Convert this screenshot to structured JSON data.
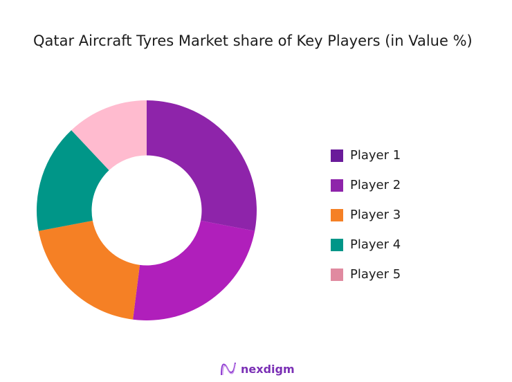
{
  "chart_data": {
    "type": "pie",
    "subtype": "donut",
    "title": "Qatar Aircraft Tyres Market share of Key Players (in Value %)",
    "categories": [
      "Player 1",
      "Player 2",
      "Player 3",
      "Player 4",
      "Player 5"
    ],
    "values": [
      28,
      24,
      20,
      16,
      12
    ],
    "colors": [
      "#8e24aa",
      "#b01fbb",
      "#f58025",
      "#009688",
      "#ffbbcf"
    ],
    "legend_colors": [
      "#6a1b9a",
      "#8e24aa",
      "#f58025",
      "#009688",
      "#e08aa0"
    ],
    "legend_position": "right",
    "start_angle": "top (12 o'clock), clockwise",
    "inner_radius_ratio": 0.5
  },
  "title": "Qatar Aircraft Tyres Market share of Key Players (in Value %)",
  "legend": [
    {
      "label": "Player 1",
      "color": "#6a1b9a"
    },
    {
      "label": "Player 2",
      "color": "#8e24aa"
    },
    {
      "label": "Player 3",
      "color": "#f58025"
    },
    {
      "label": "Player 4",
      "color": "#009688"
    },
    {
      "label": "Player 5",
      "color": "#e08aa0"
    }
  ],
  "footer": {
    "logo_text": "nexdigm"
  }
}
